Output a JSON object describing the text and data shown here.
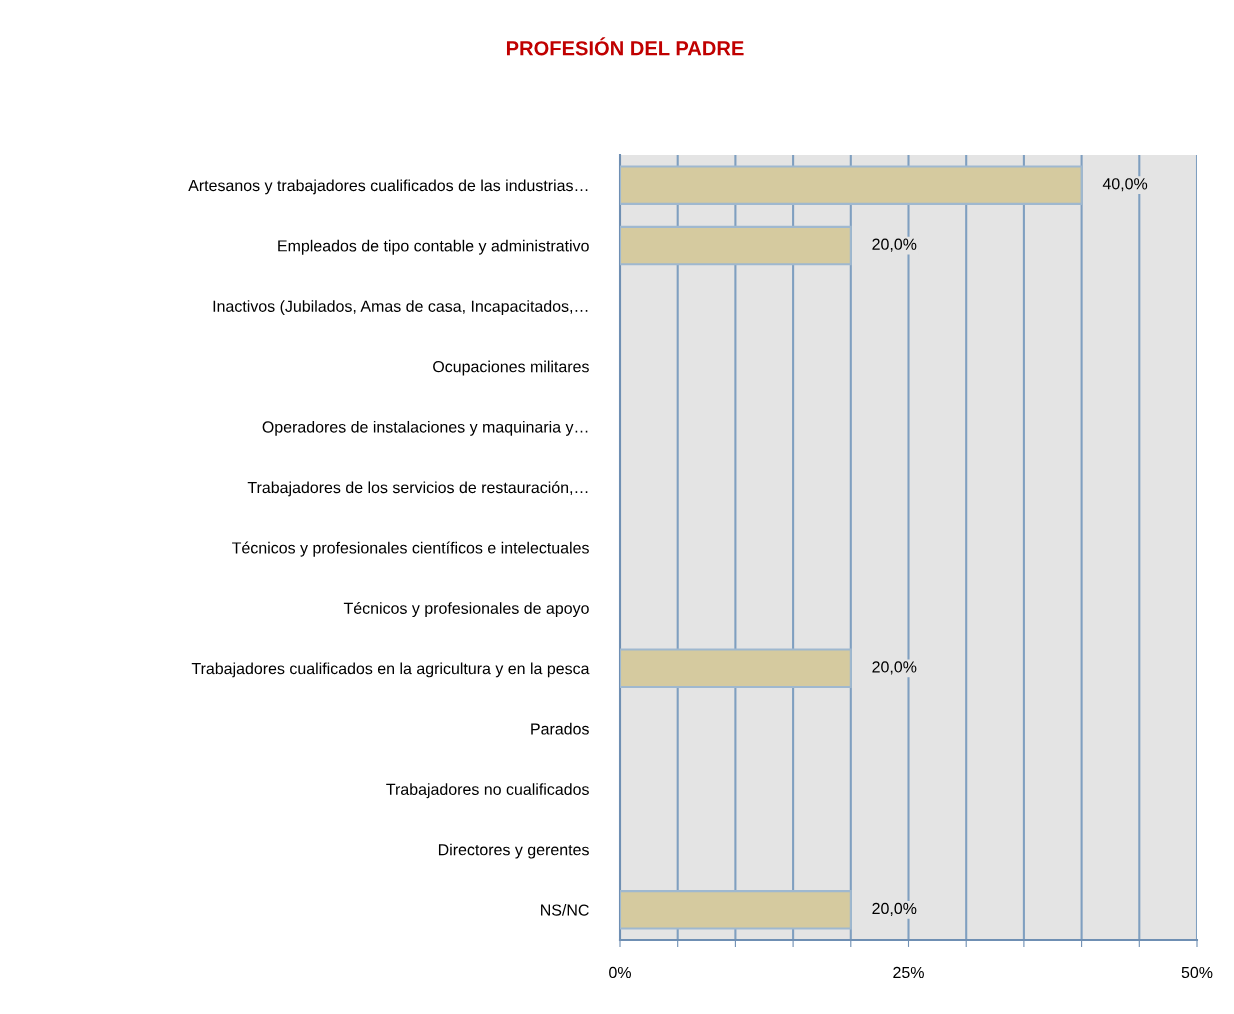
{
  "chart_data": {
    "type": "bar",
    "orientation": "horizontal",
    "title": "PROFESIÓN DEL PADRE",
    "categories": [
      "Artesanos y trabajadores cualificados de las industrias…",
      "Empleados de tipo contable y administrativo",
      "Inactivos (Jubilados, Amas de casa, Incapacitados,…",
      "Ocupaciones militares",
      "Operadores de instalaciones y maquinaria y…",
      "Trabajadores de los servicios de restauración,…",
      "Técnicos y profesionales científicos e intelectuales",
      "Técnicos y profesionales de apoyo",
      "Trabajadores cualificados en la agricultura y en la pesca",
      "Parados",
      "Trabajadores no cualificados",
      "Directores y gerentes",
      "NS/NC"
    ],
    "values": [
      40,
      20,
      0,
      0,
      0,
      0,
      0,
      0,
      20,
      0,
      0,
      0,
      20
    ],
    "value_labels": [
      "40,0%",
      "20,0%",
      null,
      null,
      null,
      null,
      null,
      null,
      "20,0%",
      null,
      null,
      null,
      "20,0%"
    ],
    "color": "#d5ca9f",
    "xlim": [
      0,
      50
    ],
    "xticks": [
      {
        "value": 0,
        "label": "0%"
      },
      {
        "value": 5,
        "label": null
      },
      {
        "value": 10,
        "label": null
      },
      {
        "value": 15,
        "label": null
      },
      {
        "value": 20,
        "label": null
      },
      {
        "value": 25,
        "label": "25%"
      },
      {
        "value": 30,
        "label": null
      },
      {
        "value": 35,
        "label": null
      },
      {
        "value": 40,
        "label": null
      },
      {
        "value": 45,
        "label": null
      },
      {
        "value": 50,
        "label": "50%"
      }
    ],
    "grid": "x"
  }
}
